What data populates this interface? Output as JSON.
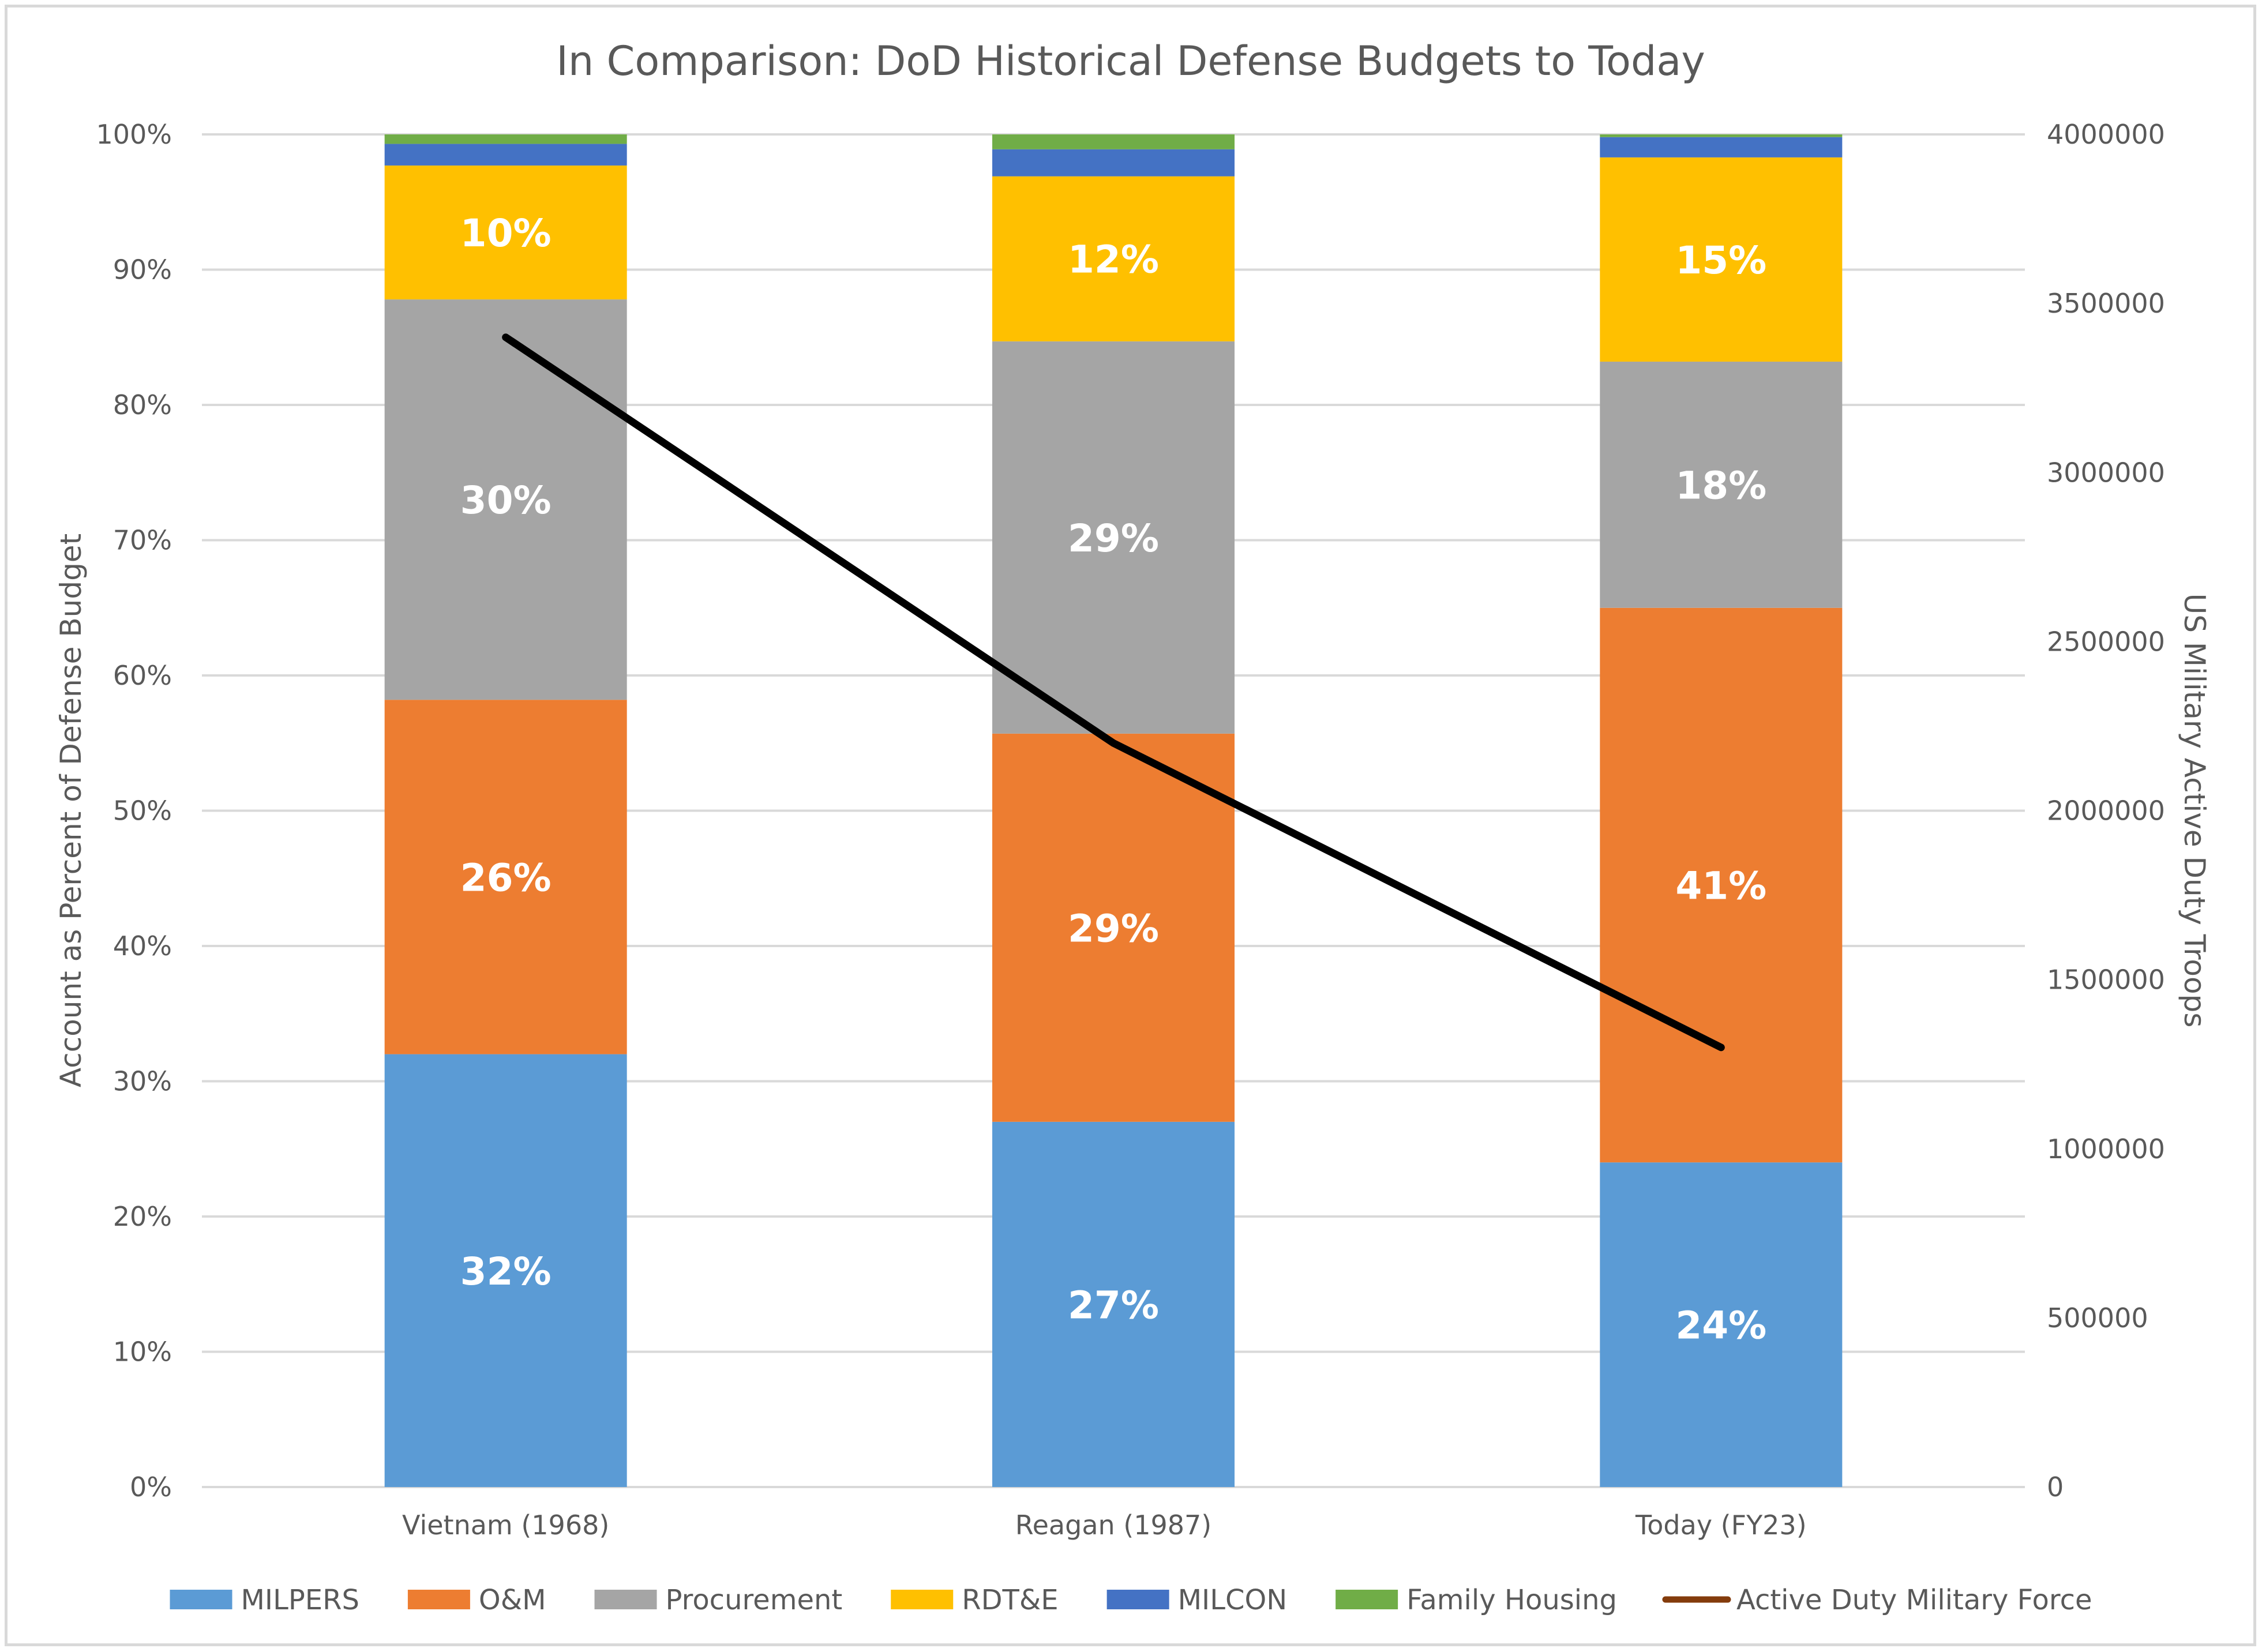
{
  "chart_data": {
    "type": "bar",
    "stacked": true,
    "title": "In Comparison: DoD Historical Defense Budgets to Today",
    "ylabel": "Account as Percent of Defense Budget",
    "y2label": "US Military Active Duty Troops",
    "categories": [
      "Vietnam (1968)",
      "Reagan (1987)",
      "Today (FY23)"
    ],
    "ylim": [
      0,
      100
    ],
    "y_ticks": [
      "0%",
      "10%",
      "20%",
      "30%",
      "40%",
      "50%",
      "60%",
      "70%",
      "80%",
      "90%",
      "100%"
    ],
    "y2lim": [
      0,
      4000000
    ],
    "y2_ticks": [
      "0",
      "500000",
      "1000000",
      "1500000",
      "2000000",
      "2500000",
      "3000000",
      "3500000",
      "4000000"
    ],
    "grid": true,
    "legend_position": "bottom",
    "series": [
      {
        "name": "MILPERS",
        "color": "#5b9bd5",
        "values": [
          32,
          27,
          24
        ],
        "labels": [
          "32%",
          "27%",
          "24%"
        ]
      },
      {
        "name": "O&M",
        "color": "#ed7d31",
        "values": [
          26.2,
          28.7,
          41
        ],
        "labels": [
          "26%",
          "29%",
          "41%"
        ]
      },
      {
        "name": "Procurement",
        "color": "#a5a5a5",
        "values": [
          29.6,
          29,
          18.2
        ],
        "labels": [
          "30%",
          "29%",
          "18%"
        ]
      },
      {
        "name": "RDT&E",
        "color": "#ffc000",
        "values": [
          9.9,
          12.2,
          15.1
        ],
        "labels": [
          "10%",
          "12%",
          "15%"
        ]
      },
      {
        "name": "MILCON",
        "color": "#4472c4",
        "values": [
          1.6,
          2,
          1.5
        ],
        "labels": [
          "",
          "",
          ""
        ]
      },
      {
        "name": "Family Housing",
        "color": "#70ad47",
        "values": [
          0.7,
          1.1,
          0.2
        ],
        "labels": [
          "",
          "",
          ""
        ]
      }
    ],
    "line_series": {
      "name": "Active Duty Military Force",
      "color": "#000000",
      "legend_color": "#843c0c",
      "axis": "secondary",
      "values": [
        3400000,
        2200000,
        1300000
      ]
    }
  }
}
